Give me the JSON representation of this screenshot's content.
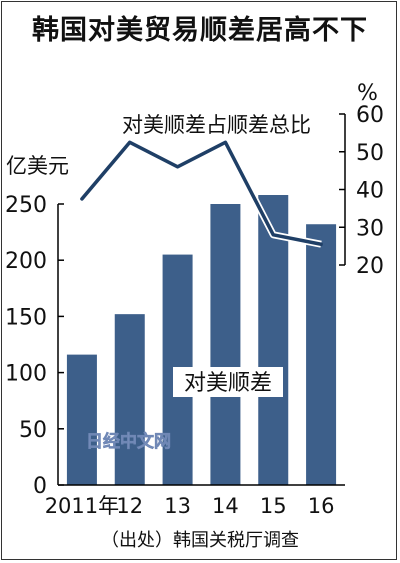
{
  "title": "韩国对美贸易顺差居高不下",
  "source": "（出处）韩国关税厅调查",
  "watermark": "日经中文网",
  "colors": {
    "bar": "#3d5f8a",
    "line": "#1f3f66",
    "text": "#111111",
    "grid": "#000000"
  },
  "chart_data": {
    "type": "bar+line",
    "categories": [
      "2011年",
      "12",
      "13",
      "14",
      "15",
      "16"
    ],
    "left_axis": {
      "label": "亿美元",
      "ylim": [
        0,
        250
      ],
      "ticks": [
        0,
        50,
        100,
        150,
        200,
        250
      ]
    },
    "right_axis": {
      "label": "%",
      "ylim": [
        20,
        60
      ],
      "ticks": [
        20,
        30,
        40,
        50,
        60
      ]
    },
    "series": [
      {
        "name": "对美顺差",
        "type": "bar",
        "axis": "left",
        "values": [
          116,
          152,
          205,
          250,
          258,
          232
        ]
      },
      {
        "name": "对美顺差占顺差总比",
        "type": "line",
        "axis": "right",
        "values": [
          37.5,
          52.5,
          46,
          52.5,
          28,
          25.5
        ]
      }
    ]
  }
}
